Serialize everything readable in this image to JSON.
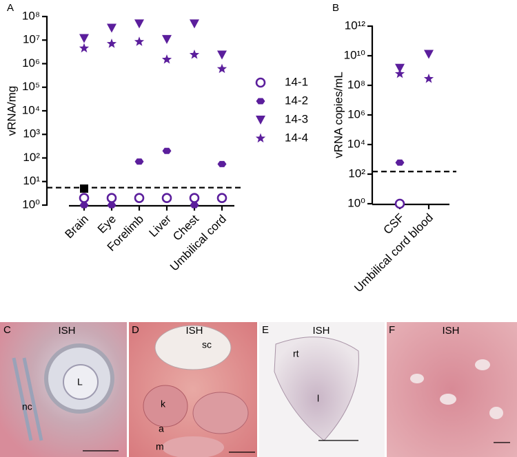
{
  "chart_data": [
    {
      "type": "scatter",
      "panel": "A",
      "y_label": "vRNA/mg",
      "log_y": true,
      "legend": "right",
      "categories": [
        "Brain",
        "Eye",
        "Forelimb",
        "Liver",
        "Chest",
        "Umbilical cord"
      ],
      "ylim": [
        1,
        100000000
      ],
      "yticks": [
        {
          "value": 1,
          "label": "10⁰"
        },
        {
          "value": 10,
          "label": "10¹"
        },
        {
          "value": 100,
          "label": "10²"
        },
        {
          "value": 1000,
          "label": "10³"
        },
        {
          "value": 10000,
          "label": "10⁴"
        },
        {
          "value": 100000,
          "label": "10⁵"
        },
        {
          "value": 1000000,
          "label": "10⁶"
        },
        {
          "value": 10000000,
          "label": "10⁷"
        },
        {
          "value": 100000000,
          "label": "10⁸"
        }
      ],
      "threshold": 5.5,
      "series": [
        {
          "name": "14-1",
          "color": "#5b1e9c",
          "marker": "open-circle",
          "values": [
            2,
            2,
            2,
            2,
            2,
            2
          ]
        },
        {
          "name": "14-2",
          "color": "#5b1e9c",
          "marker": "hexagon",
          "values": [
            1,
            1,
            70,
            200,
            1,
            55
          ]
        },
        {
          "name": "14-3",
          "color": "#5b1e9c",
          "marker": "triangle",
          "values": [
            12000000,
            33000000,
            50000000,
            11000000,
            50000000,
            2400000
          ]
        },
        {
          "name": "14-4",
          "color": "#5b1e9c",
          "marker": "star",
          "values": [
            4500000,
            7000000,
            8500000,
            1500000,
            2400000,
            600000
          ]
        },
        {
          "color": "#000000",
          "marker": "square",
          "values": [
            5,
            null,
            null,
            null,
            null,
            null
          ]
        }
      ]
    },
    {
      "type": "scatter",
      "panel": "B",
      "y_label": "vRNA copies/mL",
      "log_y": true,
      "categories": [
        "CSF",
        "Umbilical cord blood"
      ],
      "ylim": [
        1,
        1000000000000
      ],
      "yticks": [
        {
          "value": 1,
          "label": "10⁰"
        },
        {
          "value": 100,
          "label": "10²"
        },
        {
          "value": 10000,
          "label": "10⁴"
        },
        {
          "value": 1000000,
          "label": "10⁶"
        },
        {
          "value": 100000000,
          "label": "10⁸"
        },
        {
          "value": 10000000000,
          "label": "10¹⁰"
        },
        {
          "value": 1000000000000,
          "label": "10¹²"
        }
      ],
      "threshold": 150,
      "series": [
        {
          "color": "#5b1e9c",
          "marker": "open-circle",
          "values": [
            1,
            null
          ]
        },
        {
          "color": "#5b1e9c",
          "marker": "hexagon",
          "values": [
            600,
            null
          ]
        },
        {
          "color": "#5b1e9c",
          "marker": "triangle",
          "values": [
            1500000000,
            13000000000
          ]
        },
        {
          "color": "#5b1e9c",
          "marker": "star",
          "values": [
            600000000,
            280000000
          ]
        }
      ]
    }
  ],
  "panels": [
    {
      "letter": "C",
      "title": "ISH",
      "labels": [
        "nc",
        "L"
      ]
    },
    {
      "letter": "D",
      "title": "ISH",
      "labels": [
        "sc",
        "k",
        "a",
        "m"
      ]
    },
    {
      "letter": "E",
      "title": "ISH",
      "labels": [
        "rt",
        "l"
      ]
    },
    {
      "letter": "F",
      "title": "ISH",
      "labels": []
    }
  ]
}
